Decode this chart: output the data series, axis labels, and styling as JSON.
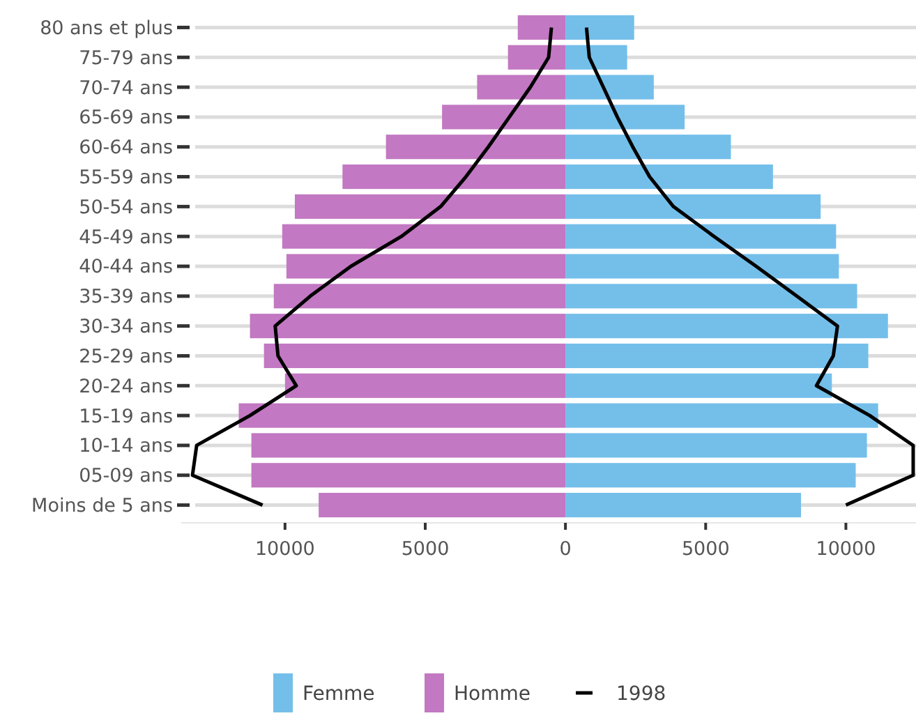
{
  "chart_data": {
    "type": "bar",
    "orientation": "horizontal",
    "categories": [
      "80 ans et plus",
      "75-79 ans",
      "70-74 ans",
      "65-69 ans",
      "60-64 ans",
      "55-59 ans",
      "50-54 ans",
      "45-49 ans",
      "40-44 ans",
      "35-39 ans",
      "30-34 ans",
      "25-29 ans",
      "20-24 ans",
      "15-19 ans",
      "10-14 ans",
      "05-09 ans",
      "Moins de 5 ans"
    ],
    "series": [
      {
        "name": "Femme",
        "color": "#74bfea",
        "values": [
          2450,
          2200,
          3150,
          4250,
          5900,
          7400,
          9100,
          9650,
          9750,
          10400,
          11500,
          10800,
          9500,
          11150,
          10750,
          10350,
          8400
        ]
      },
      {
        "name": "Homme",
        "color": "#c278c2",
        "values": [
          -1700,
          -2050,
          -3150,
          -4400,
          -6400,
          -7950,
          -9650,
          -10100,
          -9950,
          -10400,
          -11250,
          -10750,
          -10000,
          -11650,
          -11200,
          -11200,
          -8800
        ]
      },
      {
        "name": "1998",
        "type": "line",
        "color": "#000000",
        "values": [
          750,
          850,
          1350,
          1850,
          2400,
          3000,
          3850,
          5300,
          6800,
          8250,
          9700,
          9550,
          8950,
          10850,
          12400,
          12400,
          10000
        ]
      },
      {
        "type": "line",
        "color": "#000000",
        "values": [
          -500,
          -600,
          -1250,
          -2000,
          -2750,
          -3550,
          -4450,
          -5850,
          -7650,
          -9100,
          -10350,
          -10250,
          -9600,
          -11250,
          -13150,
          -13300,
          -10800
        ]
      }
    ],
    "xlim": [
      -13700,
      12500
    ],
    "xticks": [
      {
        "value": -10000,
        "label": "10000"
      },
      {
        "value": -5000,
        "label": "5000"
      },
      0,
      5000,
      10000
    ],
    "stacked": true,
    "grid": "y",
    "legend": "bottom",
    "line_style": "solid",
    "marker": "none"
  }
}
